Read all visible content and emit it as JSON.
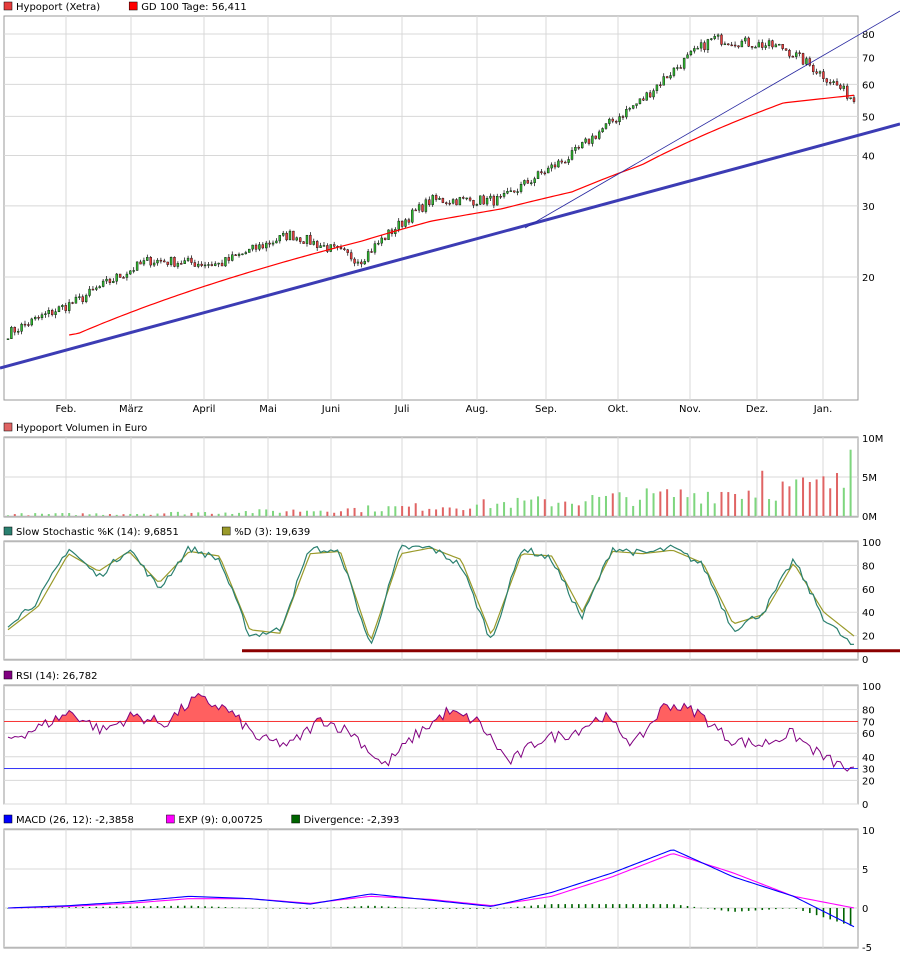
{
  "colors": {
    "price_series": "#e63c3c",
    "gd100": "#ff0000",
    "trend_thick": "#3c3cb4",
    "trend_thin": "#2828a0",
    "volume_up": "#7ed67e",
    "volume_down": "#e06464",
    "stoch_k": "#2a8070",
    "stoch_d": "#9a9a2a",
    "stoch_line": "#8b0000",
    "rsi": "#800080",
    "rsi_fill": "#ff6060",
    "rsi_70": "#ff0000",
    "rsi_30": "#0000ff",
    "macd": "#0000ff",
    "exp": "#ff00ff",
    "divergence": "#006400",
    "grid": "#d8d8d8"
  },
  "chart_data": [
    {
      "type": "candlestick",
      "legend": [
        {
          "label": "Hypoport (Xetra)",
          "color": "#e63c3c"
        },
        {
          "label": "GD 100 Tage: 56,411",
          "color": "#ff0000"
        }
      ],
      "scale": "log",
      "y_ticks": [
        "80",
        "70",
        "60",
        "50",
        "40",
        "30",
        "20"
      ],
      "y_tick_values": [
        80,
        70,
        60,
        50,
        40,
        30,
        20
      ],
      "x_labels": [
        "Feb.",
        "März",
        "April",
        "Mai",
        "Juni",
        "Juli",
        "Aug.",
        "Sep.",
        "Okt.",
        "Nov.",
        "Dez.",
        "Jan."
      ],
      "monthly_close_approx": [
        14.5,
        17.5,
        22.0,
        21.5,
        25.5,
        22.0,
        31.0,
        31.0,
        40.0,
        55.0,
        78.0,
        74.0,
        55.0
      ],
      "gd100_approx": [
        13.5,
        14.5,
        17.0,
        19.5,
        22.0,
        24.5,
        27.5,
        29.5,
        32.5,
        38.0,
        46.0,
        54.0,
        56.4
      ]
    },
    {
      "type": "bar",
      "legend": [
        {
          "label": "Hypoport Volumen in Euro",
          "color": "#e06464"
        }
      ],
      "y_ticks": [
        "10M",
        "5M",
        "0M"
      ],
      "y_tick_values": [
        10,
        5,
        0
      ],
      "unit": "M Euro",
      "peaks_approx": [
        {
          "month": "Jan.",
          "value": 8.5
        },
        {
          "month": "Dez.",
          "value": 5.8
        },
        {
          "month": "Nov.",
          "value": 4.2
        }
      ]
    },
    {
      "type": "line",
      "legend": [
        {
          "label": "Slow Stochastic %K (14): 9,6851",
          "color": "#2a8070"
        },
        {
          "label": "%D (3): 19,639",
          "color": "#9a9a2a"
        }
      ],
      "y_ticks": [
        "100",
        "80",
        "60",
        "40",
        "20",
        "0"
      ],
      "y_tick_values": [
        100,
        80,
        60,
        40,
        20,
        0
      ],
      "k_approx": [
        30,
        50,
        95,
        70,
        95,
        60,
        95,
        85,
        20,
        25,
        95,
        90,
        10,
        95,
        95,
        80,
        15,
        95,
        85,
        35,
        95,
        90,
        95,
        80,
        25,
        40,
        85,
        35,
        9.7
      ],
      "d_approx": [
        25,
        45,
        90,
        75,
        92,
        65,
        92,
        88,
        25,
        22,
        90,
        92,
        15,
        90,
        95,
        85,
        20,
        90,
        88,
        40,
        92,
        90,
        93,
        82,
        30,
        38,
        82,
        40,
        19.6
      ],
      "support_level": 7
    },
    {
      "type": "line",
      "legend": [
        {
          "label": "RSI (14): 26,782",
          "color": "#800080"
        }
      ],
      "y_ticks": [
        "100",
        "80",
        "70",
        "60",
        "40",
        "30",
        "20",
        "0"
      ],
      "y_tick_values": [
        100,
        80,
        70,
        60,
        40,
        30,
        20,
        0
      ],
      "reference_lines": [
        70,
        30
      ],
      "rsi_approx": [
        55,
        65,
        78,
        62,
        75,
        68,
        90,
        80,
        55,
        50,
        72,
        60,
        32,
        58,
        78,
        70,
        35,
        55,
        60,
        75,
        50,
        85,
        78,
        55,
        50,
        60,
        40,
        26.8
      ]
    },
    {
      "type": "line",
      "legend": [
        {
          "label": "MACD (26, 12): -2,3858",
          "color": "#0000ff"
        },
        {
          "label": "EXP (9): 0,00725",
          "color": "#ff00ff"
        },
        {
          "label": "Divergence: -2,393",
          "color": "#006400"
        }
      ],
      "y_ticks": [
        "10",
        "5",
        "0",
        "-5"
      ],
      "y_tick_values": [
        10,
        5,
        0,
        -5
      ],
      "macd_approx": [
        0,
        0.3,
        0.8,
        1.5,
        1.2,
        0.5,
        1.8,
        1.0,
        0.2,
        2.0,
        4.5,
        7.5,
        4.0,
        1.5,
        -2.4
      ],
      "exp_approx": [
        0,
        0.2,
        0.6,
        1.2,
        1.2,
        0.6,
        1.5,
        1.1,
        0.3,
        1.5,
        4.0,
        7.0,
        4.5,
        1.5,
        0.007
      ]
    }
  ]
}
